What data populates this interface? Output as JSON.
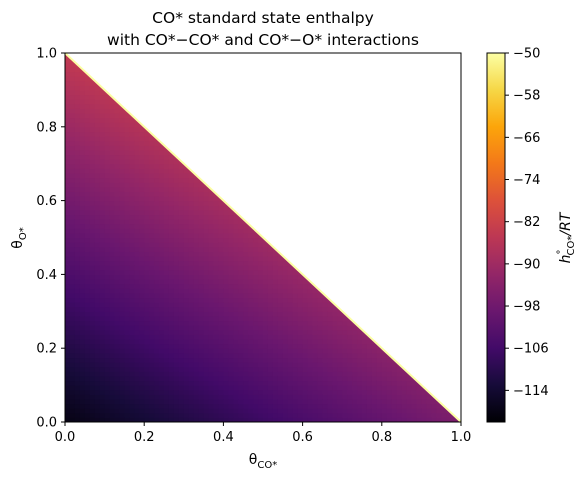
{
  "chart_data": {
    "type": "heatmap",
    "title": [
      "CO* standard state enthalpy",
      "with CO*−CO* and CO*−O* interactions"
    ],
    "xlabel": {
      "base": "θ",
      "sub": "CO*"
    },
    "ylabel": {
      "base": "θ",
      "sub": "O*"
    },
    "xlim": [
      0,
      1
    ],
    "ylim": [
      0,
      1
    ],
    "xticks": [
      0.0,
      0.2,
      0.4,
      0.6,
      0.8,
      1.0
    ],
    "yticks": [
      0.0,
      0.2,
      0.4,
      0.6,
      0.8,
      1.0
    ],
    "xtick_labels": [
      "0.0",
      "0.2",
      "0.4",
      "0.6",
      "0.8",
      "1.0"
    ],
    "ytick_labels": [
      "0.0",
      "0.2",
      "0.4",
      "0.6",
      "0.8",
      "1.0"
    ],
    "domain": "theta_CO + theta_O <= 1 (upper-right triangle blank)",
    "values_at_corners": {
      "theta_CO_0_theta_O_0": -118,
      "theta_CO_1_theta_O_0": -96,
      "theta_CO_0_theta_O_1": -84
    },
    "boundary_value": -50,
    "colormap": "inferno",
    "colorbar": {
      "label": {
        "base": "h",
        "sup": "°",
        "sub": "CO*",
        "suffix": "/RT"
      },
      "vmin": -120,
      "vmax": -50,
      "ticks": [
        -50,
        -58,
        -66,
        -74,
        -82,
        -90,
        -98,
        -106,
        -114
      ],
      "tick_labels": [
        "−50",
        "−58",
        "−66",
        "−74",
        "−82",
        "−90",
        "−98",
        "−106",
        "−114"
      ]
    },
    "grid": false
  }
}
